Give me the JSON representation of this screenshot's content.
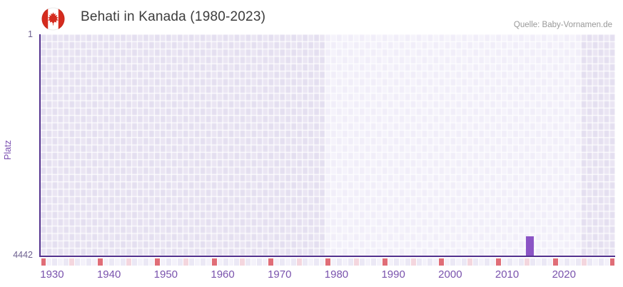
{
  "header": {
    "title": "Behati in Kanada (1980-2023)",
    "source": "Quelle: Baby-Vornamen.de",
    "flag": "canada"
  },
  "chart_data": {
    "type": "bar",
    "title": "Behati in Kanada (1980-2023)",
    "xlabel": "",
    "ylabel": "Platz",
    "y_ticks": [
      "1",
      "4442"
    ],
    "x_ticks": [
      1930,
      1940,
      1950,
      1960,
      1970,
      1980,
      1990,
      2000,
      2010,
      2020
    ],
    "xlim": [
      1928,
      2028
    ],
    "ylim": [
      1,
      4442
    ],
    "y_axis_inverted": true,
    "legend": "none",
    "grid": "checkerboard",
    "series": [
      {
        "name": "Behati",
        "points": [
          {
            "year": 2014,
            "rank": 4050
          }
        ]
      }
    ],
    "data_window_years": [
      1978,
      2022
    ],
    "timeline_strip": {
      "red_years": [
        1928,
        1938,
        1948,
        1958,
        1968,
        1978,
        1988,
        1998,
        2008,
        2018,
        2028
      ],
      "pink_years": [
        1933,
        1943,
        1953,
        1963,
        1973,
        1983,
        1993,
        2003,
        2013,
        2023
      ]
    },
    "colors": {
      "bar": "#8b54c5",
      "axis": "#53318e",
      "title_text": "#3c3c3c",
      "source_text": "#999999",
      "x_tick_text": "#7a53ad",
      "y_tick_text": "#6e6190",
      "ylabel_text": "#7a4fb0",
      "cell_dark_a": "#e4dff0",
      "cell_dark_b": "#eae5f3",
      "cell_light_a": "#f1eef9",
      "cell_light_b": "#f5f3fb",
      "strip_a": "#ebe8f5",
      "strip_b": "#f4f2fa",
      "strip_red": "#e06d77",
      "strip_pink": "#f4d6de",
      "flag_red": "#d52b1e",
      "flag_white": "#ffffff"
    }
  }
}
